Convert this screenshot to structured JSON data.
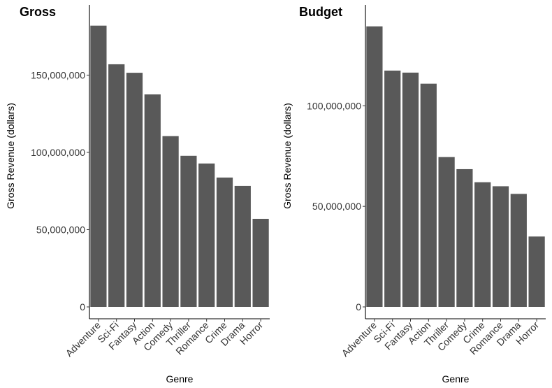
{
  "chart_data": [
    {
      "type": "bar",
      "title": "Gross",
      "xlabel": "Genre",
      "ylabel": "Gross Revenue (dollars)",
      "categories": [
        "Adventure",
        "Sci-Fi",
        "Fantasy",
        "Action",
        "Comedy",
        "Thriller",
        "Romance",
        "Crime",
        "Drama",
        "Horror"
      ],
      "values": [
        182000000,
        157000000,
        151500000,
        137500000,
        110500000,
        97800000,
        92800000,
        83700000,
        78300000,
        57000000
      ],
      "ylim": [
        0,
        190000000
      ],
      "yticks": [
        0,
        50000000,
        100000000,
        150000000
      ],
      "ytick_labels": [
        "0",
        "50,000,000",
        "100,000,000",
        "150,000,000"
      ],
      "bar_color": "#595959",
      "grid": false
    },
    {
      "type": "bar",
      "title": "Budget",
      "xlabel": "Genre",
      "ylabel": "Gross Revenue (dollars)",
      "categories": [
        "Adventure",
        "Sci-Fi",
        "Fantasy",
        "Action",
        "Thriller",
        "Comedy",
        "Crime",
        "Romance",
        "Drama",
        "Horror"
      ],
      "values": [
        139500000,
        117500000,
        116500000,
        111000000,
        74500000,
        68500000,
        62000000,
        60000000,
        56200000,
        35000000
      ],
      "ylim": [
        0,
        146000000
      ],
      "yticks": [
        0,
        50000000,
        100000000
      ],
      "ytick_labels": [
        "0",
        "50,000,000",
        "100,000,000"
      ],
      "bar_color": "#595959",
      "grid": false
    }
  ]
}
